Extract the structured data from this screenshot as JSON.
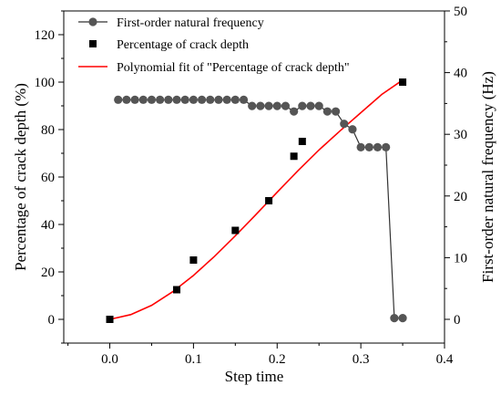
{
  "chart_data": {
    "type": "scatter",
    "xlabel": "Step time",
    "ylabel_left": "Percentage of crack depth (%)",
    "ylabel_right": "First-order natural frequency (Hz)",
    "xlim": [
      -0.055,
      0.4
    ],
    "ylim_left": [
      -10,
      130
    ],
    "ylim_right": [
      -3.85,
      50
    ],
    "x_ticks": [
      0.0,
      0.1,
      0.2,
      0.3,
      0.4
    ],
    "x_tick_labels": [
      "0.0",
      "0.1",
      "0.2",
      "0.3",
      "0.4"
    ],
    "y_left_ticks": [
      0,
      20,
      40,
      60,
      80,
      100,
      120
    ],
    "y_left_tick_labels": [
      "0",
      "20",
      "40",
      "60",
      "80",
      "100",
      "120"
    ],
    "y_right_ticks": [
      0,
      10,
      20,
      30,
      40,
      50
    ],
    "y_right_tick_labels": [
      "0",
      "10",
      "20",
      "30",
      "40",
      "50"
    ],
    "grid": false,
    "legend_position": "top-left",
    "series": [
      {
        "name": "First-order natural frequency",
        "axis": "right",
        "style": "line-marker-circle",
        "color": "#555555",
        "x": [
          0.01,
          0.02,
          0.03,
          0.04,
          0.05,
          0.06,
          0.07,
          0.08,
          0.09,
          0.1,
          0.11,
          0.12,
          0.13,
          0.14,
          0.15,
          0.16,
          0.17,
          0.18,
          0.19,
          0.2,
          0.21,
          0.22,
          0.23,
          0.24,
          0.25,
          0.26,
          0.27,
          0.28,
          0.29,
          0.3,
          0.31,
          0.32,
          0.33,
          0.34,
          0.35
        ],
        "y": [
          35.6,
          35.6,
          35.6,
          35.6,
          35.6,
          35.6,
          35.6,
          35.6,
          35.6,
          35.6,
          35.6,
          35.6,
          35.6,
          35.6,
          35.6,
          35.6,
          34.6,
          34.6,
          34.6,
          34.6,
          34.6,
          33.7,
          34.6,
          34.6,
          34.6,
          33.7,
          33.7,
          31.7,
          30.8,
          27.9,
          27.9,
          27.9,
          27.9,
          0.2,
          0.2
        ]
      },
      {
        "name": "Percentage of crack depth",
        "axis": "left",
        "style": "marker-square",
        "color": "#000000",
        "x": [
          0.0,
          0.08,
          0.1,
          0.15,
          0.19,
          0.22,
          0.23,
          0.35
        ],
        "y": [
          0,
          12.5,
          25,
          37.5,
          50,
          68.75,
          75,
          100
        ]
      },
      {
        "name": "Polynomial fit of \"Percentage of crack depth\"",
        "axis": "left",
        "style": "line",
        "color": "#ff0000",
        "x": [
          0.0,
          0.025,
          0.05,
          0.075,
          0.1,
          0.125,
          0.15,
          0.175,
          0.2,
          0.225,
          0.25,
          0.275,
          0.3,
          0.325,
          0.35
        ],
        "y": [
          0,
          2.0,
          5.9,
          11.6,
          18.5,
          26.5,
          35.2,
          44.3,
          53.6,
          62.7,
          71.4,
          79.4,
          87.1,
          94.8,
          100.9
        ]
      }
    ]
  }
}
